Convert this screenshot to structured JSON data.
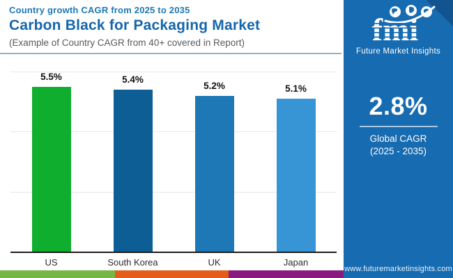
{
  "header": {
    "eyebrow": "Country growth CAGR from 2025 to 2035",
    "title": "Carbon Black for Packaging Market",
    "subtitle": "(Example of Country CAGR from 40+ covered in Report)"
  },
  "chart_data": {
    "type": "bar",
    "title": "Carbon Black for Packaging Market",
    "subtitle": "Country growth CAGR from 2025 to 2035",
    "categories": [
      "US",
      "South Korea",
      "UK",
      "Japan"
    ],
    "values": [
      5.5,
      5.4,
      5.2,
      5.1
    ],
    "value_labels": [
      "5.5%",
      "5.4%",
      "5.2%",
      "5.1%"
    ],
    "bar_colors": [
      "#0fae2e",
      "#0c5e95",
      "#1d78b5",
      "#3795d5"
    ],
    "xlabel": "",
    "ylabel": "",
    "ylim": [
      0,
      6
    ],
    "gridline_values": [
      2,
      4,
      6
    ],
    "grid": true,
    "legend": false,
    "data_labels": true
  },
  "sidebar": {
    "bg_color": "#176bb0",
    "logo_text": "fmi",
    "logo_tagline": "Future Market Insights",
    "stat_value": "2.8%",
    "stat_label_line1": "Global CAGR",
    "stat_label_line2": "(2025 - 2035)",
    "website": "www.futuremarketinsights.com"
  },
  "footer": {
    "stripe_colors": [
      "#76b644",
      "#e65c1b",
      "#8a1a80"
    ]
  },
  "colors": {
    "eyebrow": "#1e78b6",
    "title": "#1566ab",
    "subtitle": "#595959",
    "header_divider": "#8fb3cc",
    "gridline": "#e6e6e6",
    "axis_line": "#1a1a1a"
  }
}
